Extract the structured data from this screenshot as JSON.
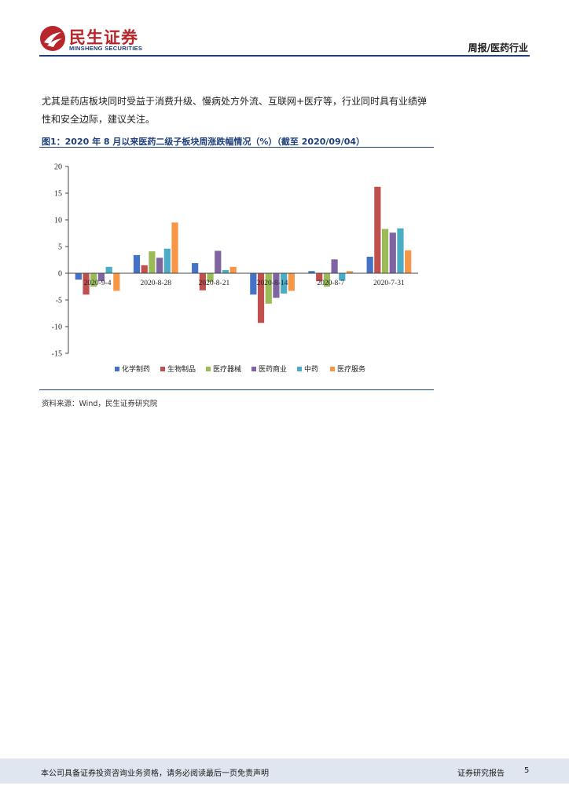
{
  "header": {
    "logo_cn": "民生证券",
    "logo_en": "MINSHENG SECURITIES",
    "report_type": "周报/医药行业"
  },
  "body": {
    "line1": "尤其是药店板块同时受益于消费升级、慢病处方外流、互联网+医疗等，行业同时具有业绩弹",
    "line2": "性和安全边际，建议关注。"
  },
  "figure": {
    "title": "图1：2020 年 8 月以来医药二级子板块周涨跌幅情况（%）（截至 2020/09/04）",
    "source": "资料来源：Wind，民生证券研究院"
  },
  "colors": {
    "brand_red": "#b8262b",
    "brand_blue": "#1f3f7a",
    "footer_bg": "#dfe6f0"
  },
  "chart_data": {
    "type": "bar",
    "categories": [
      "2020-9-4",
      "2020-8-28",
      "2020-8-21",
      "2020-8-14",
      "2020-8-7",
      "2020-7-31"
    ],
    "ylim": [
      -15,
      20
    ],
    "yticks": [
      20,
      15,
      10,
      5,
      0,
      -5,
      -10,
      -15
    ],
    "legend_position": "bottom",
    "series": [
      {
        "name": "化学制药",
        "color": "#4472c4",
        "values": [
          -1.2,
          3.4,
          1.9,
          -4.0,
          0.4,
          3.1
        ]
      },
      {
        "name": "生物制品",
        "color": "#c0504d",
        "values": [
          -4.0,
          1.5,
          -3.2,
          -9.3,
          -1.5,
          16.2
        ]
      },
      {
        "name": "医疗器械",
        "color": "#9bbb59",
        "values": [
          -2.5,
          4.1,
          -1.6,
          -5.7,
          -2.5,
          8.3
        ]
      },
      {
        "name": "医药商业",
        "color": "#8064a2",
        "values": [
          -1.5,
          2.9,
          4.2,
          -4.6,
          2.6,
          7.6
        ]
      },
      {
        "name": "中药",
        "color": "#4bacc6",
        "values": [
          1.2,
          4.6,
          0.6,
          -3.8,
          -1.4,
          8.4
        ]
      },
      {
        "name": "医疗服务",
        "color": "#f79646",
        "values": [
          -3.3,
          9.5,
          1.2,
          -3.3,
          0.4,
          4.3
        ]
      }
    ]
  },
  "footer": {
    "disclaimer": "本公司具备证券投资咨询业务资格，请务必阅读最后一页免责声明",
    "label": "证券研究报告",
    "page": "5"
  }
}
